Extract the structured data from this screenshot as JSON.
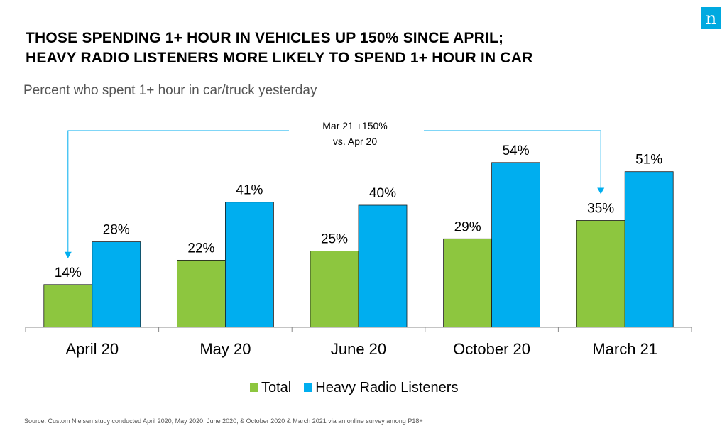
{
  "brand": {
    "logo_letter": "n"
  },
  "header": {
    "title_line1": "THOSE SPENDING 1+ HOUR IN VEHICLES UP 150% SINCE APRIL;",
    "title_line2": "HEAVY RADIO LISTENERS MORE LIKELY TO SPEND 1+ HOUR IN CAR",
    "subtitle": "Percent who spent 1+ hour in car/truck yesterday"
  },
  "chart_data": {
    "type": "bar",
    "categories": [
      "April 20",
      "May 20",
      "June 20",
      "October 20",
      "March 21"
    ],
    "series": [
      {
        "name": "Total",
        "color": "#8dc63f",
        "values": [
          14,
          22,
          25,
          29,
          35
        ],
        "labels": [
          "14%",
          "22%",
          "25%",
          "29%",
          "35%"
        ]
      },
      {
        "name": "Heavy Radio Listeners",
        "color": "#00aeef",
        "values": [
          28,
          41,
          40,
          54,
          51
        ],
        "labels": [
          "28%",
          "41%",
          "40%",
          "54%",
          "51%"
        ]
      }
    ],
    "ylim": [
      0,
      60
    ],
    "grid": false,
    "legend": "bottom-center",
    "annotation": {
      "line1": "Mar 21 +150%",
      "line2": "vs. Apr 20",
      "from_category": "April 20",
      "to_category": "March 21",
      "series": "Total",
      "color": "#00aeef"
    }
  },
  "footer": {
    "source": "Source: Custom Nielsen study conducted April 2020, May 2020, June 2020, & October 2020 & March 2021 via an online survey among P18+"
  }
}
